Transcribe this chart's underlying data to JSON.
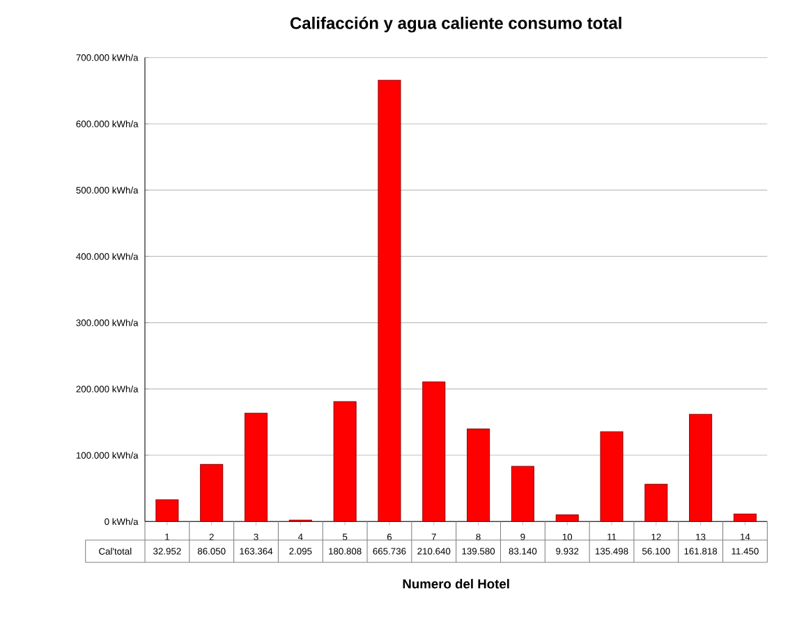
{
  "chart_data": {
    "type": "bar",
    "title": "Califacción y agua caliente consumo total",
    "xlabel": "Numero del Hotel",
    "categories": [
      "1",
      "2",
      "3",
      "4",
      "5",
      "6",
      "7",
      "8",
      "9",
      "10",
      "11",
      "12",
      "13",
      "14"
    ],
    "series": [
      {
        "name": "Cal'total",
        "color": "#ff0000",
        "values": [
          32952,
          86050,
          163364,
          2095,
          180808,
          665736,
          210640,
          139580,
          83140,
          9932,
          135498,
          56100,
          161818,
          11450
        ],
        "value_labels": [
          "32.952",
          "86.050",
          "163.364",
          "2.095",
          "180.808",
          "665.736",
          "210.640",
          "139.580",
          "83.140",
          "9.932",
          "135.498",
          "56.100",
          "161.818",
          "11.450"
        ]
      }
    ],
    "ylim": [
      0,
      700000
    ],
    "yticks": [
      {
        "value": 0,
        "label": "0 kWh/a"
      },
      {
        "value": 100000,
        "label": "100.000 kWh/a"
      },
      {
        "value": 200000,
        "label": "200.000 kWh/a"
      },
      {
        "value": 300000,
        "label": "300.000 kWh/a"
      },
      {
        "value": 400000,
        "label": "400.000 kWh/a"
      },
      {
        "value": 500000,
        "label": "500.000 kWh/a"
      },
      {
        "value": 600000,
        "label": "600.000 kWh/a"
      },
      {
        "value": 700000,
        "label": "700.000 kWh/a"
      }
    ],
    "grid": "y"
  }
}
